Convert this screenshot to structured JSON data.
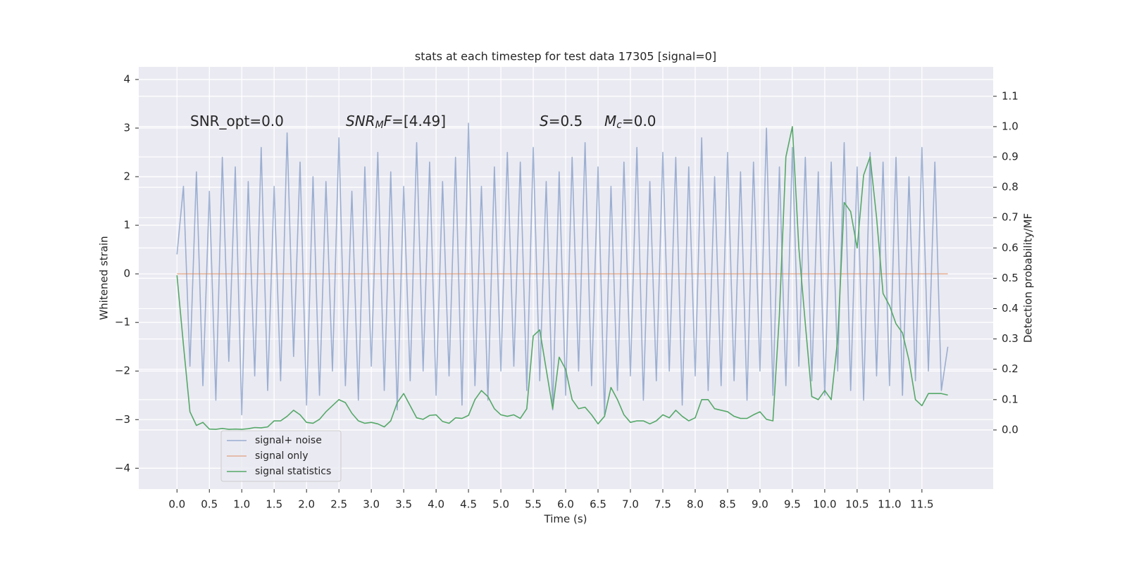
{
  "chart_data": {
    "type": "line",
    "title": "stats at each timestep for test data 17305 [signal=0]",
    "xlabel": "Time (s)",
    "ylabel": "Whitened strain",
    "y2label": "Detection probability/MF",
    "background": "#eaeaf2",
    "grid": true,
    "legend": "lower left",
    "xlim": [
      -0.59,
      12.6
    ],
    "ylim": [
      -4.43,
      4.26
    ],
    "y2lim": [
      -0.195,
      1.197
    ],
    "xticks": [
      {
        "value": 0,
        "label": "0.0"
      },
      0.5,
      {
        "value": 1,
        "label": "1.0"
      },
      1.5,
      {
        "value": 2,
        "label": "2.0"
      },
      2.5,
      {
        "value": 3,
        "label": "3.0"
      },
      3.5,
      {
        "value": 4,
        "label": "4.0"
      },
      4.5,
      {
        "value": 5,
        "label": "5.0"
      },
      5.5,
      {
        "value": 6,
        "label": "6.0"
      },
      6.5,
      {
        "value": 7,
        "label": "7.0"
      },
      7.5,
      {
        "value": 8,
        "label": "8.0"
      },
      8.5,
      {
        "value": 9,
        "label": "9.0"
      },
      9.5,
      {
        "value": 10,
        "label": "10.0"
      },
      10.5,
      {
        "value": 11,
        "label": "11.0"
      },
      11.5
    ],
    "yticks": [
      {
        "value": -4,
        "label": "−4"
      },
      {
        "value": -3,
        "label": "−3"
      },
      {
        "value": -2,
        "label": "−2"
      },
      {
        "value": -1,
        "label": "−1"
      },
      0,
      1,
      2,
      3,
      4
    ],
    "y2ticks": [
      {
        "value": 0,
        "label": "0.0"
      },
      0.1,
      0.2,
      0.3,
      0.4,
      0.5,
      0.6,
      0.7,
      0.8,
      0.9,
      {
        "value": 1,
        "label": "1.0"
      },
      1.1
    ],
    "annotations": [
      {
        "parts": [
          {
            "text": "SNR_opt=0.0",
            "style": "normal"
          }
        ]
      },
      {
        "parts": [
          {
            "text": "SNR",
            "style": "italic"
          },
          {
            "text": "M",
            "style": "sub"
          },
          {
            "text": "F",
            "style": "italic"
          },
          {
            "text": "=[4.49]",
            "style": "normal"
          }
        ]
      },
      {
        "parts": [
          {
            "text": "S",
            "style": "italic"
          },
          {
            "text": "=0.5",
            "style": "normal"
          }
        ]
      },
      {
        "parts": [
          {
            "text": "M",
            "style": "italic"
          },
          {
            "text": "c",
            "style": "sub"
          },
          {
            "text": "=0.0",
            "style": "normal"
          }
        ]
      }
    ],
    "x": [
      0,
      0.1,
      0.2,
      0.3,
      0.4,
      0.5,
      0.6,
      0.7,
      0.8,
      0.9,
      1,
      1.1,
      1.2,
      1.3,
      1.4,
      1.5,
      1.6,
      1.7,
      1.8,
      1.9,
      2,
      2.1,
      2.2,
      2.3,
      2.4,
      2.5,
      2.6,
      2.7,
      2.8,
      2.9,
      3,
      3.1,
      3.2,
      3.3,
      3.4,
      3.5,
      3.6,
      3.7,
      3.8,
      3.9,
      4,
      4.1,
      4.2,
      4.3,
      4.4,
      4.5,
      4.6,
      4.7,
      4.8,
      4.9,
      5,
      5.1,
      5.2,
      5.3,
      5.4,
      5.5,
      5.6,
      5.7,
      5.8,
      5.9,
      6,
      6.1,
      6.2,
      6.3,
      6.4,
      6.5,
      6.6,
      6.7,
      6.8,
      6.9,
      7,
      7.1,
      7.2,
      7.3,
      7.4,
      7.5,
      7.6,
      7.7,
      7.8,
      7.9,
      8,
      8.1,
      8.2,
      8.3,
      8.4,
      8.5,
      8.6,
      8.7,
      8.8,
      8.9,
      9,
      9.1,
      9.2,
      9.3,
      9.4,
      9.5,
      9.6,
      9.7,
      9.8,
      9.9,
      10,
      10.1,
      10.2,
      10.3,
      10.4,
      10.5,
      10.6,
      10.7,
      10.8,
      10.9,
      11,
      11.1,
      11.2,
      11.3,
      11.4,
      11.5,
      11.6,
      11.7,
      11.8,
      11.9
    ],
    "series": [
      {
        "name": "signal+ noise",
        "color": "#4c72b0",
        "opacity": 0.5,
        "axis": "y",
        "values": [
          0.4,
          1.8,
          -1.9,
          2.1,
          -2.3,
          1.7,
          -2.6,
          2.4,
          -1.8,
          2.2,
          -2.9,
          1.9,
          -2.1,
          2.6,
          -2.4,
          1.8,
          -2.2,
          2.9,
          -1.7,
          2.3,
          -2.7,
          2.0,
          -2.5,
          1.9,
          -2.0,
          2.8,
          -2.3,
          1.7,
          -2.6,
          2.2,
          -1.9,
          2.5,
          -2.4,
          2.1,
          -2.8,
          1.8,
          -2.2,
          2.7,
          -2.0,
          2.3,
          -2.5,
          1.9,
          -2.1,
          2.4,
          -2.7,
          3.1,
          -2.3,
          1.8,
          -2.6,
          2.2,
          -2.0,
          2.5,
          -1.9,
          2.3,
          -2.4,
          2.6,
          -2.2,
          1.9,
          -2.8,
          2.1,
          -2.5,
          2.4,
          -2.0,
          2.7,
          -2.3,
          2.2,
          -2.9,
          1.8,
          -2.4,
          2.3,
          -2.1,
          2.6,
          -2.6,
          1.9,
          -2.2,
          2.5,
          -2.0,
          2.4,
          -2.7,
          2.2,
          -2.1,
          2.8,
          -2.4,
          2.0,
          -2.3,
          2.5,
          -2.2,
          2.1,
          -2.6,
          2.3,
          -2.0,
          3.0,
          -2.5,
          2.2,
          -2.3,
          2.6,
          -1.9,
          2.4,
          -2.2,
          2.1,
          -2.5,
          2.3,
          -2.0,
          2.7,
          -2.4,
          2.2,
          -2.6,
          2.5,
          -2.1,
          2.3,
          -2.3,
          2.4,
          -2.5,
          2.0,
          -2.2,
          2.6,
          -2.0,
          2.3,
          -2.4,
          -1.5
        ]
      },
      {
        "name": "signal only",
        "color": "#dd8452",
        "opacity": 0.6,
        "axis": "y",
        "x": [
          0,
          11.9
        ],
        "values": [
          0,
          0
        ]
      },
      {
        "name": "signal statistics",
        "color": "#55a868",
        "opacity": 1,
        "axis": "y2",
        "values": [
          0.51,
          0.28,
          0.06,
          0.015,
          0.025,
          0.003,
          0.002,
          0.005,
          0.002,
          0.003,
          0.002,
          0.004,
          0.008,
          0.007,
          0.01,
          0.03,
          0.03,
          0.045,
          0.065,
          0.05,
          0.025,
          0.022,
          0.035,
          0.06,
          0.08,
          0.1,
          0.09,
          0.055,
          0.03,
          0.022,
          0.025,
          0.02,
          0.01,
          0.03,
          0.09,
          0.12,
          0.08,
          0.04,
          0.035,
          0.048,
          0.05,
          0.028,
          0.022,
          0.04,
          0.038,
          0.048,
          0.1,
          0.13,
          0.11,
          0.07,
          0.05,
          0.045,
          0.05,
          0.038,
          0.07,
          0.31,
          0.33,
          0.2,
          0.07,
          0.24,
          0.2,
          0.1,
          0.07,
          0.075,
          0.05,
          0.02,
          0.045,
          0.14,
          0.1,
          0.05,
          0.025,
          0.03,
          0.03,
          0.02,
          0.03,
          0.05,
          0.04,
          0.065,
          0.045,
          0.03,
          0.04,
          0.1,
          0.1,
          0.07,
          0.065,
          0.06,
          0.045,
          0.038,
          0.038,
          0.05,
          0.06,
          0.035,
          0.03,
          0.38,
          0.9,
          1.0,
          0.6,
          0.35,
          0.11,
          0.1,
          0.13,
          0.1,
          0.3,
          0.75,
          0.72,
          0.6,
          0.84,
          0.9,
          0.7,
          0.45,
          0.41,
          0.35,
          0.32,
          0.23,
          0.1,
          0.08,
          0.12,
          0.12,
          0.12,
          0.115
        ]
      }
    ]
  }
}
